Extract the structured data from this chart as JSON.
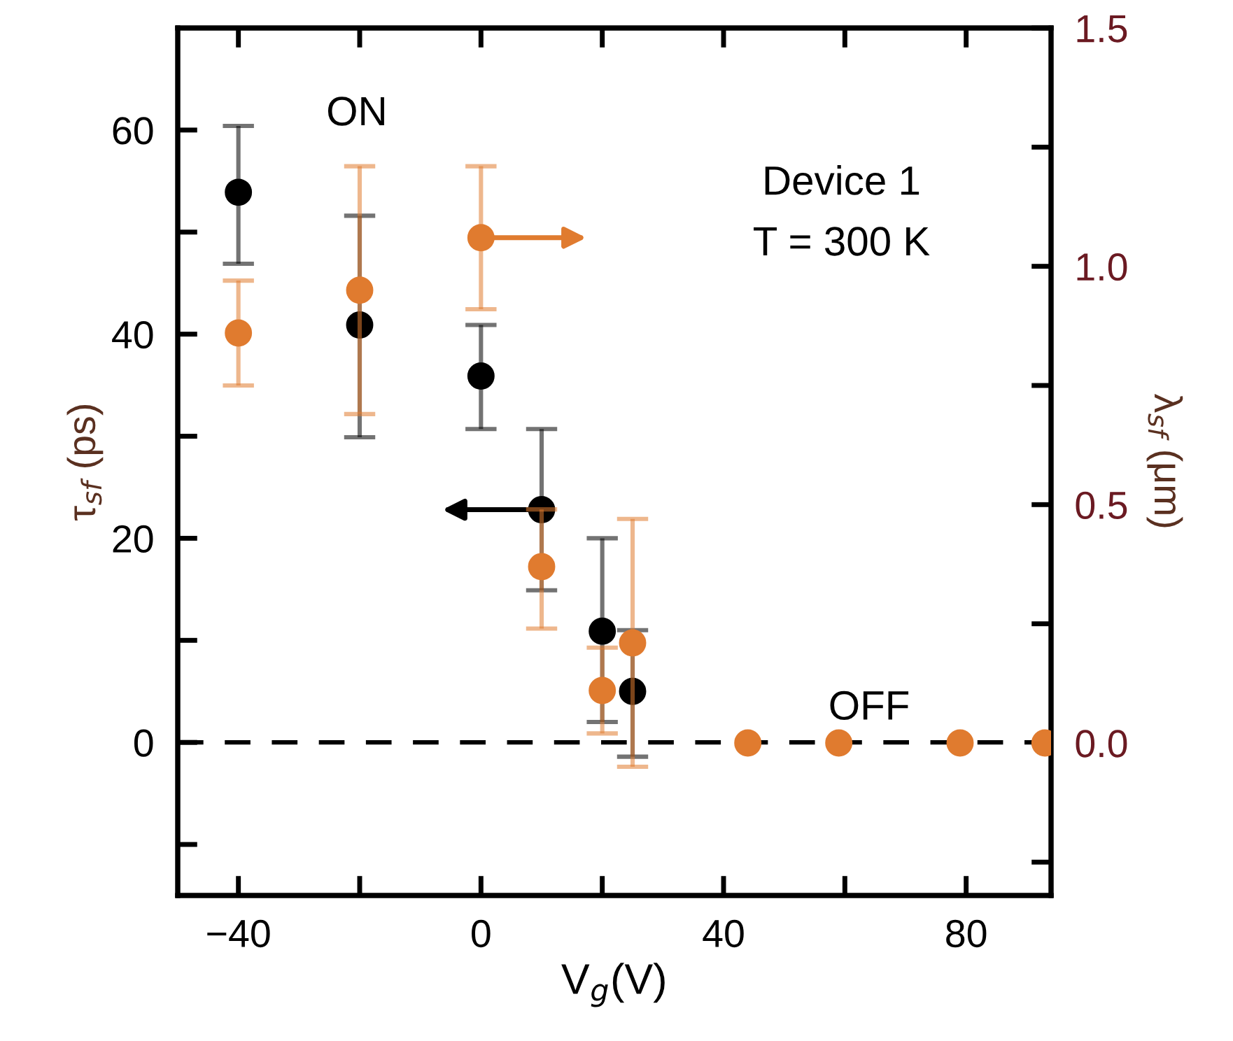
{
  "chart_data": {
    "type": "scatter",
    "xlabel": "V$_{g}$(V)",
    "ylabel": "τ$_{sf}$ (ps)",
    "y2label": "λ$_{sf}$ (μm)",
    "annotations": [
      "ON",
      "OFF",
      "Device 1",
      "T = 300 K"
    ],
    "marker": "circle",
    "grid": false,
    "xlim": [
      -50,
      94
    ],
    "xticks": [
      {
        "value": -40,
        "label": "−40"
      },
      {
        "value": -20,
        "label": null
      },
      0,
      {
        "value": 20,
        "label": null
      },
      40,
      {
        "value": 60,
        "label": null
      },
      80
    ],
    "ylim": [
      -15,
      70
    ],
    "yticks": [
      {
        "value": -10,
        "label": null
      },
      0,
      {
        "value": 10,
        "label": null
      },
      20,
      {
        "value": 30,
        "label": null
      },
      40,
      {
        "value": 50,
        "label": null
      },
      60
    ],
    "y2lim": [
      -0.32,
      1.5
    ],
    "y2ticks": [
      {
        "value": -0.25,
        "label": null
      },
      {
        "value": 0,
        "label": "0.0"
      },
      {
        "value": 0.25,
        "label": null
      },
      {
        "value": 0.5,
        "label": "0.5"
      },
      {
        "value": 0.75,
        "label": null
      },
      {
        "value": 1.0,
        "label": "1.0"
      },
      {
        "value": 1.25,
        "label": null
      },
      {
        "value": 1.5,
        "label": "1.5"
      }
    ],
    "ref_lines": [
      {
        "axis": "y",
        "value": 0,
        "label": null,
        "color": "#000000",
        "line_style": "dashed"
      }
    ],
    "series": [
      {
        "color": "#000000",
        "x": [
          -40,
          -20,
          0,
          10,
          20,
          25
        ],
        "values": [
          53.9,
          40.9,
          35.9,
          22.8,
          10.9,
          5.0
        ],
        "errors": [
          [
            46.9,
            60.4
          ],
          [
            29.9,
            51.6
          ],
          [
            30.7,
            40.9
          ],
          [
            14.9,
            30.7
          ],
          [
            2.0,
            20.0
          ],
          [
            -1.4,
            11
          ]
        ]
      },
      {
        "color": "#e07b2f",
        "axis": "y2",
        "x": [
          -40,
          -20,
          0,
          10,
          20,
          25,
          44,
          59,
          79,
          93
        ],
        "values": [
          0.86,
          0.95,
          1.06,
          0.37,
          0.11,
          0.21,
          0,
          0,
          0,
          0
        ],
        "errors": [
          [
            0.75,
            0.97
          ],
          [
            0.69,
            1.21
          ],
          [
            0.91,
            1.21
          ],
          [
            0.24,
            0.49
          ],
          [
            0.02,
            0.2
          ],
          [
            -0.05,
            0.47
          ],
          null,
          null,
          null,
          null
        ]
      }
    ]
  }
}
